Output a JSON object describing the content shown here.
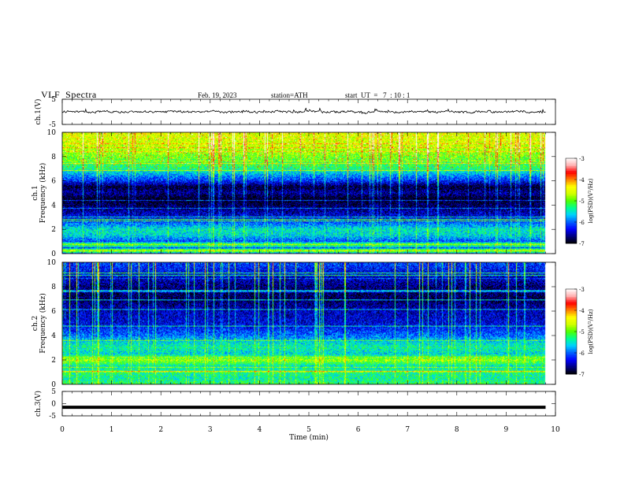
{
  "header": {
    "title": "VLF  Spectra",
    "date": "Feb. 19, 2023",
    "station": "station=ATH",
    "start": "start  UT  =   7  : 10 : 1"
  },
  "colors": {
    "trace": "#000000",
    "axis": "#000000",
    "colormap": [
      "#000000",
      "#000080",
      "#0000ff",
      "#0060ff",
      "#00d0ff",
      "#00ff90",
      "#50ff00",
      "#d0ff00",
      "#ffff00",
      "#ff8000",
      "#ff0000",
      "#ffb0b0",
      "#ffffff"
    ]
  },
  "chart_data": [
    {
      "type": "line",
      "name": "ch1-waveform",
      "ylabel": "ch.1(V)",
      "ylim": [
        -5,
        5
      ],
      "yticks": [
        "5",
        "-5"
      ],
      "xlim": [
        0,
        10
      ],
      "baseline": 0,
      "amplitude_range": [
        -1.2,
        1.4
      ]
    },
    {
      "type": "heatmap",
      "name": "ch1-spectrogram",
      "ylabel": "ch.1\nFrequency (kHz)",
      "ylim": [
        0,
        10
      ],
      "yticks": [
        "0",
        "2",
        "4",
        "6",
        "8",
        "10"
      ],
      "xlim": [
        0,
        10
      ],
      "data_end_min": 9.8,
      "colorbar": {
        "label": "log(PSD)(V²/Hz)",
        "range": [
          -7,
          -3
        ],
        "ticks": [
          "-3",
          "-4",
          "-5",
          "-6",
          "-7"
        ]
      },
      "profile_log_psd": [
        {
          "f": 0.0,
          "v": -6.0
        },
        {
          "f": 0.25,
          "v": -4.6
        },
        {
          "f": 0.5,
          "v": -6.2
        },
        {
          "f": 0.75,
          "v": -4.8
        },
        {
          "f": 1.0,
          "v": -6.1
        },
        {
          "f": 1.5,
          "v": -5.6
        },
        {
          "f": 2.0,
          "v": -5.5
        },
        {
          "f": 2.3,
          "v": -5.8
        },
        {
          "f": 3.0,
          "v": -6.4
        },
        {
          "f": 4.0,
          "v": -6.8
        },
        {
          "f": 4.5,
          "v": -7.0
        },
        {
          "f": 5.0,
          "v": -6.6
        },
        {
          "f": 5.5,
          "v": -6.9
        },
        {
          "f": 6.0,
          "v": -6.2
        },
        {
          "f": 6.5,
          "v": -5.8
        },
        {
          "f": 7.0,
          "v": -5.3
        },
        {
          "f": 8.0,
          "v": -4.9
        },
        {
          "f": 9.0,
          "v": -4.6
        },
        {
          "f": 10.0,
          "v": -4.5
        }
      ]
    },
    {
      "type": "heatmap",
      "name": "ch2-spectrogram",
      "ylabel": "ch.2\nFrequency (kHz)",
      "ylim": [
        0,
        10
      ],
      "yticks": [
        "0",
        "2",
        "4",
        "6",
        "8",
        "10"
      ],
      "xlim": [
        0,
        10
      ],
      "data_end_min": 9.8,
      "colorbar": {
        "label": "log(PSD)(V²/Hz)",
        "range": [
          -7,
          -3
        ],
        "ticks": [
          "-3",
          "-4",
          "-5",
          "-6",
          "-7"
        ]
      },
      "profile_log_psd": [
        {
          "f": 0.0,
          "v": -5.2
        },
        {
          "f": 0.5,
          "v": -5.4
        },
        {
          "f": 1.0,
          "v": -5.3
        },
        {
          "f": 1.5,
          "v": -5.5
        },
        {
          "f": 2.0,
          "v": -4.8
        },
        {
          "f": 2.5,
          "v": -5.6
        },
        {
          "f": 3.0,
          "v": -5.4
        },
        {
          "f": 3.5,
          "v": -5.6
        },
        {
          "f": 4.0,
          "v": -6.0
        },
        {
          "f": 4.5,
          "v": -6.2
        },
        {
          "f": 5.0,
          "v": -6.4
        },
        {
          "f": 6.0,
          "v": -6.5
        },
        {
          "f": 7.0,
          "v": -6.8
        },
        {
          "f": 8.0,
          "v": -6.7
        },
        {
          "f": 9.0,
          "v": -6.4
        },
        {
          "f": 10.0,
          "v": -6.1
        }
      ]
    },
    {
      "type": "line",
      "name": "ch3-waveform",
      "ylabel": "ch.3(V)",
      "ylim": [
        -5,
        5
      ],
      "yticks": [
        "5",
        "0",
        "-5"
      ],
      "xlim": [
        0,
        10
      ],
      "baseline": -1.5
    }
  ],
  "xaxis": {
    "label": "Time  (min)",
    "ticks": [
      "0",
      "1",
      "2",
      "3",
      "4",
      "5",
      "6",
      "7",
      "8",
      "9",
      "10"
    ]
  }
}
